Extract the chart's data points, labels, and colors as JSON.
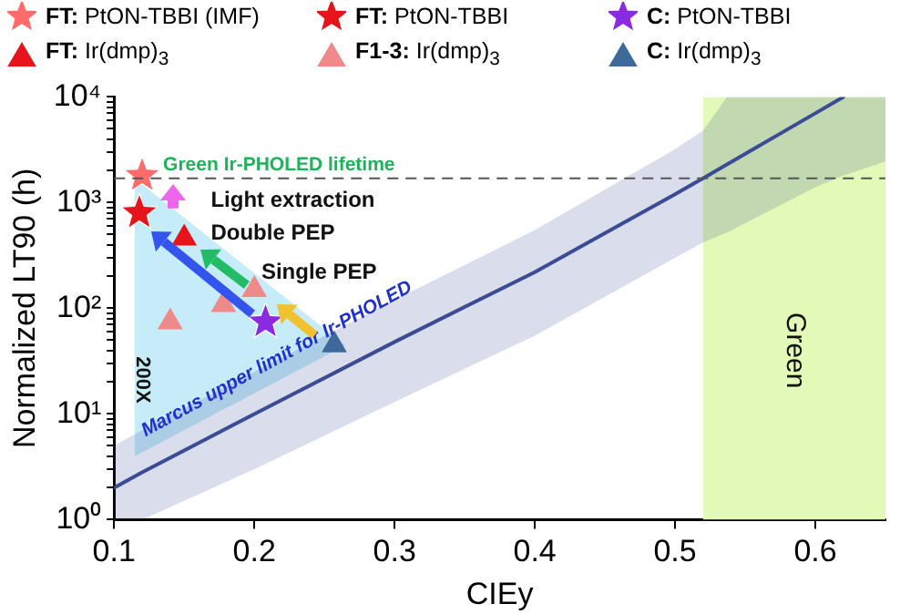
{
  "chart_data": {
    "type": "scatter",
    "xlabel": "CIEy",
    "ylabel": "Normalized LT90 (h)",
    "legend": "top",
    "grid": false,
    "log": "y",
    "xlim": [
      0.1,
      0.65
    ],
    "xticks": [
      0.1,
      0.2,
      0.3,
      0.4,
      0.5,
      0.6
    ],
    "ylim": [
      1,
      10000
    ],
    "yticks": [
      {
        "value": 1,
        "label": "10⁰"
      },
      {
        "value": 2,
        "label": null
      },
      {
        "value": 3,
        "label": null
      },
      {
        "value": 4,
        "label": null
      },
      {
        "value": 5,
        "label": null
      },
      {
        "value": 6,
        "label": null
      },
      {
        "value": 7,
        "label": null
      },
      {
        "value": 8,
        "label": null
      },
      {
        "value": 9,
        "label": null
      },
      {
        "value": 10,
        "label": "10¹"
      },
      {
        "value": 20,
        "label": null
      },
      {
        "value": 30,
        "label": null
      },
      {
        "value": 40,
        "label": null
      },
      {
        "value": 50,
        "label": null
      },
      {
        "value": 60,
        "label": null
      },
      {
        "value": 70,
        "label": null
      },
      {
        "value": 80,
        "label": null
      },
      {
        "value": 90,
        "label": null
      },
      {
        "value": 100,
        "label": "10²"
      },
      {
        "value": 200,
        "label": null
      },
      {
        "value": 300,
        "label": null
      },
      {
        "value": 400,
        "label": null
      },
      {
        "value": 500,
        "label": null
      },
      {
        "value": 600,
        "label": null
      },
      {
        "value": 700,
        "label": null
      },
      {
        "value": 800,
        "label": null
      },
      {
        "value": 900,
        "label": null
      },
      {
        "value": 1000,
        "label": "10³"
      },
      {
        "value": 2000,
        "label": null
      },
      {
        "value": 3000,
        "label": null
      },
      {
        "value": 4000,
        "label": null
      },
      {
        "value": 5000,
        "label": null
      },
      {
        "value": 6000,
        "label": null
      },
      {
        "value": 7000,
        "label": null
      },
      {
        "value": 8000,
        "label": null
      },
      {
        "value": 9000,
        "label": null
      },
      {
        "value": 10000,
        "label": "10⁴"
      }
    ],
    "series": [
      {
        "type": "line",
        "color": "#3b4c94",
        "x": [
          0.1,
          0.12,
          0.2,
          0.3,
          0.4,
          0.5,
          0.52,
          0.537,
          0.6,
          0.62,
          0.65
        ],
        "values": [
          2,
          2.8,
          10,
          48,
          220,
          1200,
          1700,
          2300,
          7000,
          10000,
          null
        ],
        "upper": [
          5,
          7,
          25,
          120,
          550,
          3200,
          4800,
          10000,
          10000,
          10000,
          10000
        ],
        "lower": [
          1,
          1,
          3,
          13,
          55,
          300,
          420,
          520,
          1400,
          1800,
          2450
        ]
      },
      {
        "name": "FT: PtON-TBBI (IMF)",
        "marker": "star",
        "color": "#ff6b6b",
        "x": [
          0.12
        ],
        "values": [
          1800
        ]
      },
      {
        "name": "FT: PtON-TBBI",
        "marker": "star",
        "color": "#e8141b",
        "x": [
          0.118
        ],
        "values": [
          800
        ]
      },
      {
        "name": "C: PtON-TBBI",
        "marker": "star",
        "color": "#8a2be2",
        "x": [
          0.208
        ],
        "values": [
          74
        ]
      },
      {
        "name": "FT: Ir(dmp)$_{3}$",
        "marker": "triangle",
        "color": "#e8141b",
        "x": [
          0.15
        ],
        "values": [
          460
        ]
      },
      {
        "name": "F1-3: Ir(dmp)$_{3}$",
        "marker": "triangle",
        "color": "#f08a8a",
        "x": [
          0.14,
          0.178,
          0.2
        ],
        "values": [
          74,
          108,
          150
        ]
      },
      {
        "name": "C: Ir(dmp)$_{3}$",
        "marker": "triangle",
        "color": "#3d6a9a",
        "x": [
          0.257
        ],
        "values": [
          45
        ]
      }
    ],
    "bands": [
      {
        "axis": "x",
        "from": 0.52,
        "to": 0.65,
        "label": "Green",
        "color": "#e2f9b8"
      }
    ],
    "ref_lines": [
      {
        "axis": "y",
        "value": 1700,
        "label": "Green Ir-PHOLED lifetime",
        "color": "#555555",
        "line_style": "dashed"
      }
    ],
    "annotations": [
      "Light extraction",
      "Double PEP",
      "Single PEP",
      "Marcus upper limit for Ir-PHOLED",
      "200X"
    ]
  }
}
